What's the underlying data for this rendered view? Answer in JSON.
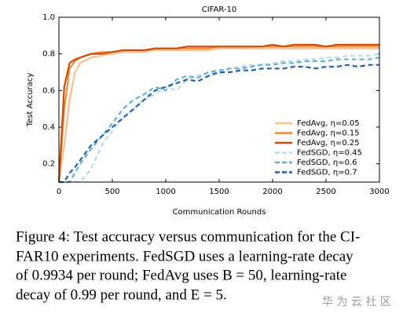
{
  "chart_data": {
    "type": "line",
    "title": "CIFAR-10",
    "xlabel": "Communication Rounds",
    "ylabel": "Test Accuracy",
    "x": [
      0,
      50,
      100,
      150,
      200,
      300,
      400,
      500,
      600,
      700,
      800,
      900,
      1000,
      1100,
      1200,
      1300,
      1400,
      1500,
      1600,
      1700,
      1800,
      1900,
      2000,
      2100,
      2200,
      2300,
      2400,
      2500,
      2600,
      2700,
      2800,
      2900,
      3000
    ],
    "series": [
      {
        "name": "FedAvg, η=0.05",
        "color": "#f9c08e",
        "dash": false,
        "values": [
          0.1,
          0.3,
          0.55,
          0.7,
          0.75,
          0.78,
          0.79,
          0.8,
          0.81,
          0.81,
          0.81,
          0.82,
          0.82,
          0.82,
          0.82,
          0.82,
          0.82,
          0.83,
          0.83,
          0.83,
          0.83,
          0.83,
          0.83,
          0.83,
          0.83,
          0.83,
          0.83,
          0.83,
          0.83,
          0.83,
          0.83,
          0.83,
          0.83
        ]
      },
      {
        "name": "FedAvg, η=0.15",
        "color": "#f08b3a",
        "dash": false,
        "values": [
          0.1,
          0.5,
          0.72,
          0.76,
          0.78,
          0.8,
          0.81,
          0.81,
          0.82,
          0.82,
          0.82,
          0.83,
          0.83,
          0.83,
          0.83,
          0.83,
          0.83,
          0.84,
          0.84,
          0.84,
          0.84,
          0.84,
          0.84,
          0.84,
          0.84,
          0.84,
          0.84,
          0.84,
          0.84,
          0.84,
          0.84,
          0.84,
          0.84
        ]
      },
      {
        "name": "FedAvg, η=0.25",
        "color": "#c84e10",
        "dash": false,
        "values": [
          0.1,
          0.62,
          0.75,
          0.77,
          0.78,
          0.8,
          0.8,
          0.81,
          0.82,
          0.82,
          0.82,
          0.83,
          0.83,
          0.83,
          0.84,
          0.84,
          0.84,
          0.84,
          0.84,
          0.84,
          0.84,
          0.84,
          0.85,
          0.84,
          0.85,
          0.85,
          0.85,
          0.84,
          0.85,
          0.85,
          0.85,
          0.85,
          0.85
        ]
      },
      {
        "name": "FedSGD, η=0.45",
        "color": "#bcdcea",
        "dash": true,
        "values": [
          0.1,
          0.1,
          0.1,
          0.1,
          0.1,
          0.17,
          0.3,
          0.38,
          0.45,
          0.5,
          0.55,
          0.58,
          0.62,
          0.6,
          0.66,
          0.68,
          0.7,
          0.69,
          0.72,
          0.73,
          0.74,
          0.74,
          0.75,
          0.76,
          0.76,
          0.77,
          0.77,
          0.78,
          0.78,
          0.79,
          0.79,
          0.79,
          0.8
        ]
      },
      {
        "name": "FedSGD, η=0.6",
        "color": "#6aaed6",
        "dash": true,
        "values": [
          0.1,
          0.1,
          0.1,
          0.15,
          0.2,
          0.28,
          0.35,
          0.42,
          0.5,
          0.55,
          0.58,
          0.62,
          0.6,
          0.66,
          0.68,
          0.67,
          0.7,
          0.71,
          0.72,
          0.72,
          0.73,
          0.74,
          0.74,
          0.75,
          0.75,
          0.76,
          0.76,
          0.76,
          0.77,
          0.77,
          0.77,
          0.77,
          0.78
        ]
      },
      {
        "name": "FedSGD, η=0.7",
        "color": "#2060a8",
        "dash": true,
        "values": [
          0.1,
          0.1,
          0.15,
          0.18,
          0.22,
          0.3,
          0.35,
          0.4,
          0.45,
          0.5,
          0.55,
          0.6,
          0.62,
          0.64,
          0.66,
          0.65,
          0.68,
          0.7,
          0.7,
          0.71,
          0.71,
          0.72,
          0.72,
          0.72,
          0.73,
          0.73,
          0.72,
          0.73,
          0.73,
          0.74,
          0.73,
          0.74,
          0.74
        ]
      }
    ],
    "xlim": [
      0,
      3000
    ],
    "xticks": [
      0,
      500,
      1000,
      1500,
      2000,
      2500,
      3000
    ],
    "ylim": [
      0.1,
      1
    ],
    "yticks": [
      0.2,
      0.4,
      0.6,
      0.8,
      {
        "value": 1,
        "label": "1.0"
      }
    ],
    "grid": false,
    "legend": "lower right"
  },
  "caption_lines": [
    "Figure 4: Test accuracy versus communication for the CI-",
    "FAR10 experiments. FedSGD uses a learning-rate decay",
    "of 0.9934 per round; FedAvg uses B = 50, learning-rate",
    "decay of 0.99 per round, and E = 5."
  ],
  "watermark": "华 为 云 社 区"
}
